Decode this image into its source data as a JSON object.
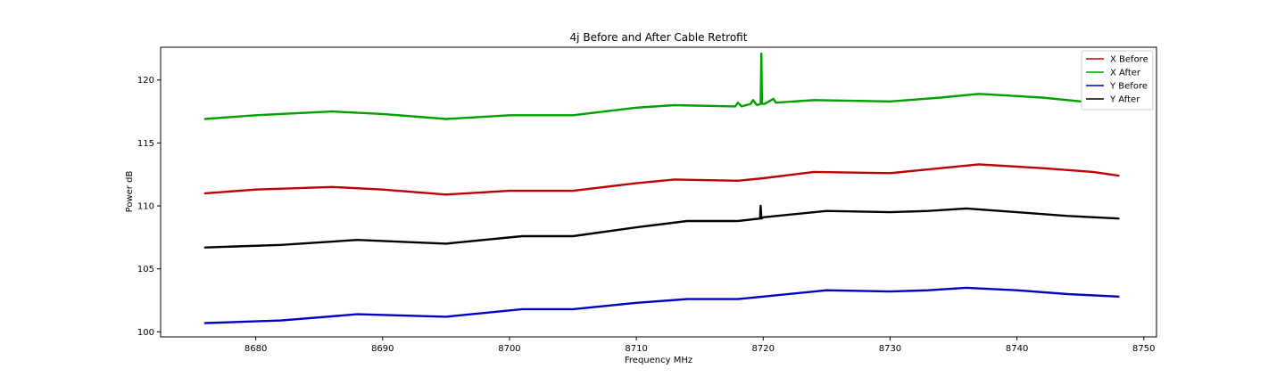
{
  "chart_data": {
    "type": "line",
    "title": "4j Before and After Cable Retrofit",
    "xlabel": "Frequency MHz",
    "ylabel": "Power dB",
    "xlim": [
      8672.5,
      8751.0
    ],
    "ylim": [
      99.6,
      122.6
    ],
    "xticks": [
      8680,
      8690,
      8700,
      8710,
      8720,
      8730,
      8740,
      8750
    ],
    "yticks": [
      100,
      105,
      110,
      115,
      120
    ],
    "grid": false,
    "legend_position": "top-right",
    "series": [
      {
        "name": "X Before",
        "color": "#c00000",
        "x": [
          8676,
          8680,
          8686,
          8690,
          8695,
          8700,
          8705,
          8710,
          8713,
          8718,
          8720,
          8724,
          8730,
          8734,
          8737,
          8742,
          8746,
          8748
        ],
        "y": [
          111.0,
          111.3,
          111.5,
          111.3,
          110.9,
          111.2,
          111.2,
          111.8,
          112.1,
          112.0,
          112.2,
          112.7,
          112.6,
          113.0,
          113.3,
          113.0,
          112.7,
          112.4
        ]
      },
      {
        "name": "X After",
        "color": "#00a000",
        "x": [
          8676,
          8680,
          8686,
          8690,
          8695,
          8700,
          8705,
          8710,
          8713,
          8717.8,
          8718,
          8718.3,
          8719.0,
          8719.2,
          8719.5,
          8719.8,
          8719.85,
          8719.9,
          8720.1,
          8720.8,
          8721,
          8724,
          8730,
          8734,
          8737,
          8742,
          8746,
          8748
        ],
        "y": [
          116.9,
          117.2,
          117.5,
          117.3,
          116.9,
          117.2,
          117.2,
          117.8,
          118.0,
          117.9,
          118.2,
          117.9,
          118.1,
          118.4,
          118.0,
          118.1,
          122.1,
          118.1,
          118.1,
          118.5,
          118.2,
          118.4,
          118.3,
          118.6,
          118.9,
          118.6,
          118.2,
          117.8
        ]
      },
      {
        "name": "Y Before",
        "color": "#0000c8",
        "x": [
          8676,
          8682,
          8688,
          8695,
          8701,
          8705,
          8710,
          8714,
          8718,
          8720,
          8725,
          8730,
          8733,
          8736,
          8740,
          8744,
          8748
        ],
        "y": [
          100.7,
          100.9,
          101.4,
          101.2,
          101.8,
          101.8,
          102.3,
          102.6,
          102.6,
          102.8,
          103.3,
          103.2,
          103.3,
          103.5,
          103.3,
          103.0,
          102.8
        ]
      },
      {
        "name": "Y After",
        "color": "#000000",
        "x": [
          8676,
          8682,
          8688,
          8695,
          8701,
          8705,
          8710,
          8714,
          8718,
          8719.75,
          8719.8,
          8719.85,
          8720,
          8725,
          8730,
          8733,
          8736,
          8740,
          8744,
          8748
        ],
        "y": [
          106.7,
          106.9,
          107.3,
          107.0,
          107.6,
          107.6,
          108.3,
          108.8,
          108.8,
          109.0,
          110.0,
          109.0,
          109.1,
          109.6,
          109.5,
          109.6,
          109.8,
          109.5,
          109.2,
          109.0
        ]
      }
    ]
  }
}
